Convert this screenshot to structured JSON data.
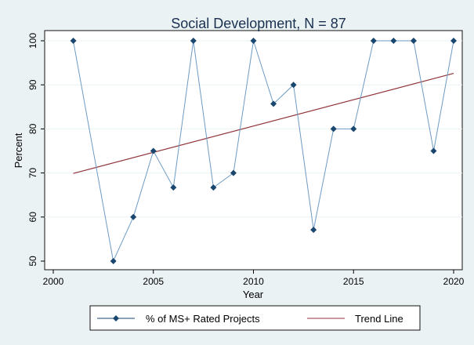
{
  "chart_data": {
    "type": "line",
    "title": "Social Development, N = 87",
    "xlabel": "Year",
    "ylabel": "Percent",
    "xlim": [
      2000,
      2020
    ],
    "ylim": [
      50,
      100
    ],
    "x_ticks": [
      2000,
      2005,
      2010,
      2015,
      2020
    ],
    "y_ticks": [
      50,
      60,
      70,
      80,
      90,
      100
    ],
    "grid": "horizontal",
    "legend_position": "bottom",
    "series": [
      {
        "name": "% of MS+ Rated Projects",
        "color": "#1a476f",
        "x": [
          2001,
          2003,
          2004,
          2005,
          2006,
          2007,
          2008,
          2009,
          2010,
          2011,
          2012,
          2013,
          2014,
          2015,
          2016,
          2017,
          2018,
          2019,
          2020
        ],
        "y": [
          100,
          50,
          60,
          75,
          66.7,
          100,
          66.7,
          70,
          100,
          85.7,
          90,
          57.1,
          80,
          80,
          100,
          100,
          100,
          75,
          100
        ]
      },
      {
        "name": "Trend Line",
        "color": "#90353b",
        "x": [
          2001,
          2020
        ],
        "y": [
          69.9,
          92.6
        ]
      }
    ]
  }
}
